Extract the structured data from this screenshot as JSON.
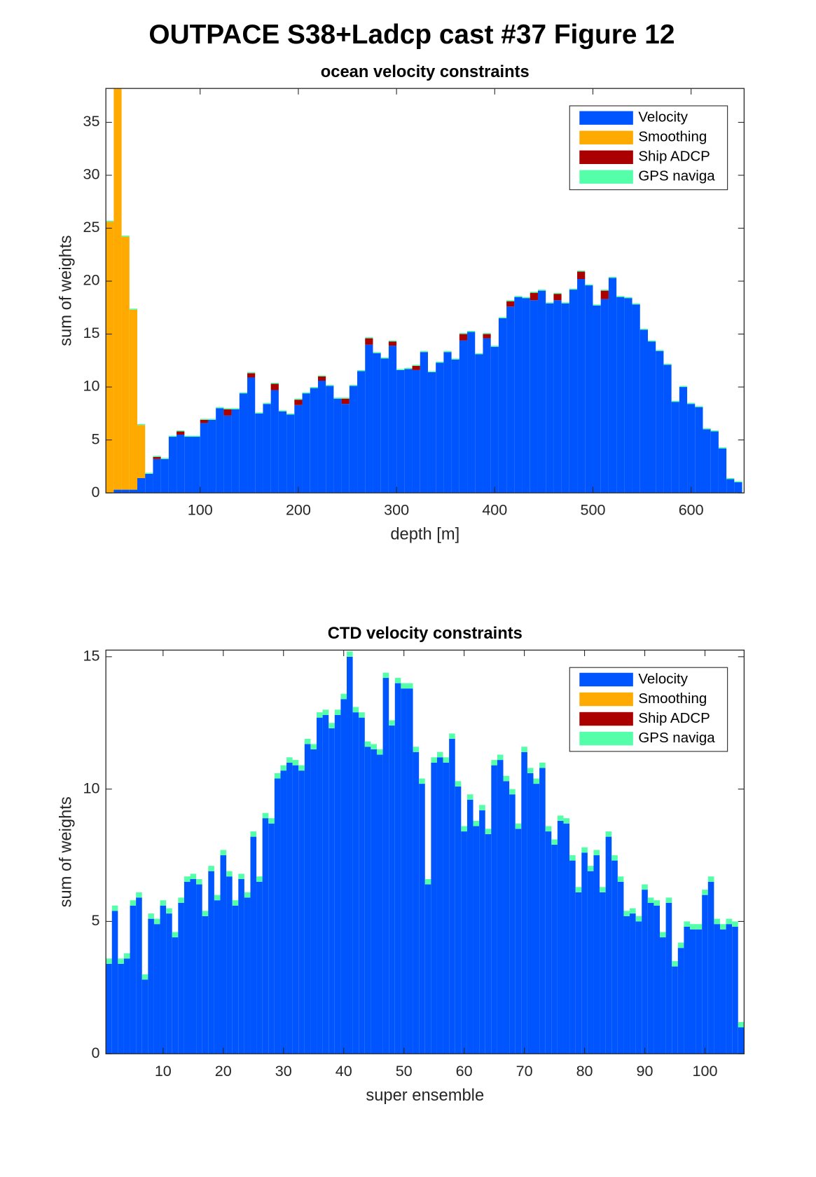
{
  "title": "OUTPACE S38+Ladcp cast #37  Figure 12",
  "chart_data": [
    {
      "type": "bar",
      "stacked": true,
      "title": "ocean velocity constraints",
      "xlabel": "depth [m]",
      "ylabel": "sum of weights",
      "xlim": [
        4,
        654
      ],
      "ylim": [
        0,
        38.2
      ],
      "xticks": [
        100,
        200,
        300,
        400,
        500,
        600
      ],
      "yticks": [
        0,
        5,
        10,
        15,
        20,
        25,
        30,
        35
      ],
      "legend": "northeast",
      "x": [
        8,
        16,
        24,
        32,
        40,
        48,
        56,
        64,
        72,
        80,
        88,
        96,
        104,
        112,
        120,
        128,
        136,
        144,
        152,
        160,
        168,
        176,
        184,
        192,
        200,
        208,
        216,
        224,
        232,
        240,
        248,
        256,
        264,
        272,
        280,
        288,
        296,
        304,
        312,
        320,
        328,
        336,
        344,
        352,
        360,
        368,
        376,
        384,
        392,
        400,
        408,
        416,
        424,
        432,
        440,
        448,
        456,
        464,
        472,
        480,
        488,
        496,
        504,
        512,
        520,
        528,
        536,
        544,
        552,
        560,
        568,
        576,
        584,
        592,
        600,
        608,
        616,
        624,
        632,
        640,
        648
      ],
      "series": [
        {
          "name": "Velocity",
          "color": "#0055ff",
          "values": [
            0,
            0.3,
            0.3,
            0.3,
            1.4,
            1.8,
            3.2,
            3.2,
            5.3,
            5.5,
            5.3,
            5.3,
            6.6,
            6.9,
            8.0,
            7.3,
            7.9,
            9.4,
            10.9,
            7.5,
            8.4,
            9.7,
            7.7,
            7.4,
            8.3,
            9.4,
            9.9,
            10.6,
            10.1,
            8.9,
            8.4,
            10.1,
            11.5,
            14.0,
            13.2,
            12.7,
            13.9,
            11.6,
            11.7,
            11.6,
            13.3,
            11.4,
            12.3,
            13.3,
            12.6,
            14.4,
            15.2,
            13.1,
            14.6,
            13.8,
            16.5,
            17.6,
            18.5,
            18.4,
            18.2,
            19.1,
            17.9,
            18.2,
            17.9,
            19.2,
            20.2,
            19.6,
            17.7,
            18.3,
            20.3,
            18.5,
            18.4,
            17.8,
            15.4,
            14.3,
            13.4,
            12.1,
            8.6,
            10.0,
            8.4,
            8.1,
            6.0,
            5.8,
            4.2,
            1.3,
            1.0
          ]
        },
        {
          "name": "Smoothing",
          "color": "#ffaa00",
          "values": [
            25.6,
            37.9,
            23.9,
            17.0,
            5.0,
            0,
            0,
            0,
            0,
            0,
            0,
            0,
            0,
            0,
            0,
            0,
            0,
            0,
            0,
            0,
            0,
            0,
            0,
            0,
            0,
            0,
            0,
            0,
            0,
            0,
            0,
            0,
            0,
            0,
            0,
            0,
            0,
            0,
            0,
            0,
            0,
            0,
            0,
            0,
            0,
            0,
            0,
            0,
            0,
            0,
            0,
            0,
            0,
            0,
            0,
            0,
            0,
            0,
            0,
            0,
            0,
            0,
            0,
            0,
            0,
            0,
            0,
            0,
            0,
            0,
            0,
            0,
            0,
            0,
            0,
            0,
            0,
            0,
            0,
            0,
            0
          ]
        },
        {
          "name": "Ship ADCP",
          "color": "#aa0000",
          "values": [
            0,
            0,
            0,
            0,
            0,
            0,
            0.2,
            0,
            0,
            0.3,
            0,
            0,
            0.3,
            0,
            0,
            0.6,
            0,
            0,
            0.4,
            0,
            0,
            0.6,
            0,
            0,
            0.5,
            0,
            0,
            0.4,
            0,
            0,
            0.5,
            0,
            0,
            0.6,
            0,
            0,
            0.4,
            0,
            0,
            0.4,
            0,
            0,
            0,
            0,
            0,
            0.6,
            0,
            0,
            0.4,
            0,
            0,
            0.5,
            0,
            0,
            0.7,
            0,
            0,
            0.6,
            0,
            0,
            0.7,
            0,
            0,
            0.8,
            0,
            0,
            0,
            0,
            0,
            0,
            0,
            0,
            0,
            0,
            0,
            0,
            0,
            0,
            0,
            0,
            0
          ]
        },
        {
          "name": "GPS naviga",
          "color": "#55ffaa",
          "values": [
            0.1,
            0.1,
            0.1,
            0.1,
            0.1,
            0.1,
            0.1,
            0.1,
            0.1,
            0.1,
            0.1,
            0.1,
            0.1,
            0.1,
            0.1,
            0.1,
            0.1,
            0.1,
            0.1,
            0.1,
            0.1,
            0.1,
            0.1,
            0.1,
            0.1,
            0.1,
            0.1,
            0.1,
            0.1,
            0.1,
            0.1,
            0.1,
            0.1,
            0.1,
            0.1,
            0.1,
            0.1,
            0.1,
            0.1,
            0.1,
            0.1,
            0.1,
            0.1,
            0.1,
            0.1,
            0.1,
            0.1,
            0.1,
            0.1,
            0.1,
            0.1,
            0.1,
            0.1,
            0.1,
            0.1,
            0.1,
            0.1,
            0.1,
            0.1,
            0.1,
            0.1,
            0.1,
            0.1,
            0.1,
            0.1,
            0.1,
            0.1,
            0.1,
            0.1,
            0.1,
            0.1,
            0.1,
            0.1,
            0.1,
            0.1,
            0.1,
            0.1,
            0.1,
            0.1,
            0.1,
            0.1
          ]
        }
      ]
    },
    {
      "type": "bar",
      "stacked": true,
      "title": "CTD velocity constraints",
      "xlabel": "super ensemble",
      "ylabel": "sum of weights",
      "xlim": [
        0.5,
        106.5
      ],
      "ylim": [
        0,
        15.25
      ],
      "xticks": [
        10,
        20,
        30,
        40,
        50,
        60,
        70,
        80,
        90,
        100
      ],
      "yticks": [
        0,
        5,
        10,
        15
      ],
      "legend": "northeast",
      "x": [
        1,
        2,
        3,
        4,
        5,
        6,
        7,
        8,
        9,
        10,
        11,
        12,
        13,
        14,
        15,
        16,
        17,
        18,
        19,
        20,
        21,
        22,
        23,
        24,
        25,
        26,
        27,
        28,
        29,
        30,
        31,
        32,
        33,
        34,
        35,
        36,
        37,
        38,
        39,
        40,
        41,
        42,
        43,
        44,
        45,
        46,
        47,
        48,
        49,
        50,
        51,
        52,
        53,
        54,
        55,
        56,
        57,
        58,
        59,
        60,
        61,
        62,
        63,
        64,
        65,
        66,
        67,
        68,
        69,
        70,
        71,
        72,
        73,
        74,
        75,
        76,
        77,
        78,
        79,
        80,
        81,
        82,
        83,
        84,
        85,
        86,
        87,
        88,
        89,
        90,
        91,
        92,
        93,
        94,
        95,
        96,
        97,
        98,
        99,
        100,
        101,
        102,
        103,
        104,
        105,
        106
      ],
      "series": [
        {
          "name": "Velocity",
          "color": "#0055ff",
          "values": [
            3.4,
            5.4,
            3.4,
            3.6,
            5.6,
            5.9,
            2.8,
            5.1,
            4.9,
            5.6,
            5.3,
            4.4,
            5.7,
            6.5,
            6.6,
            6.4,
            5.2,
            6.9,
            5.8,
            7.5,
            6.7,
            5.6,
            6.6,
            5.9,
            8.2,
            6.5,
            8.9,
            8.7,
            10.4,
            10.7,
            11.0,
            10.9,
            10.7,
            11.7,
            11.5,
            12.7,
            12.8,
            12.3,
            12.8,
            13.4,
            15.0,
            12.9,
            12.7,
            11.6,
            11.5,
            11.3,
            14.2,
            12.4,
            14.0,
            13.8,
            13.8,
            11.4,
            10.2,
            6.4,
            11.0,
            11.2,
            11.0,
            11.9,
            10.1,
            8.4,
            9.6,
            8.6,
            9.2,
            8.3,
            10.9,
            11.1,
            10.3,
            9.8,
            8.5,
            11.4,
            10.6,
            10.2,
            10.8,
            8.4,
            7.9,
            8.8,
            8.7,
            7.3,
            6.1,
            7.6,
            6.9,
            7.5,
            6.1,
            8.2,
            7.3,
            6.5,
            5.2,
            5.3,
            5.0,
            6.2,
            5.7,
            5.6,
            4.4,
            5.7,
            3.3,
            4.0,
            4.8,
            4.7,
            4.7,
            6.0,
            6.5,
            4.9,
            4.7,
            4.9,
            4.8,
            1.0
          ]
        },
        {
          "name": "Smoothing",
          "color": "#ffaa00",
          "values": [
            0,
            0,
            0,
            0,
            0,
            0,
            0,
            0,
            0,
            0,
            0,
            0,
            0,
            0,
            0,
            0,
            0,
            0,
            0,
            0,
            0,
            0,
            0,
            0,
            0,
            0,
            0,
            0,
            0,
            0,
            0,
            0,
            0,
            0,
            0,
            0,
            0,
            0,
            0,
            0,
            0,
            0,
            0,
            0,
            0,
            0,
            0,
            0,
            0,
            0,
            0,
            0,
            0,
            0,
            0,
            0,
            0,
            0,
            0,
            0,
            0,
            0,
            0,
            0,
            0,
            0,
            0,
            0,
            0,
            0,
            0,
            0,
            0,
            0,
            0,
            0,
            0,
            0,
            0,
            0,
            0,
            0,
            0,
            0,
            0,
            0,
            0,
            0,
            0,
            0,
            0,
            0,
            0,
            0,
            0,
            0,
            0,
            0,
            0,
            0,
            0,
            0,
            0,
            0,
            0,
            0
          ]
        },
        {
          "name": "Ship ADCP",
          "color": "#aa0000",
          "values": [
            0,
            0,
            0,
            0,
            0,
            0,
            0,
            0,
            0,
            0,
            0,
            0,
            0,
            0,
            0,
            0,
            0,
            0,
            0,
            0,
            0,
            0,
            0,
            0,
            0,
            0,
            0,
            0,
            0,
            0,
            0,
            0,
            0,
            0,
            0,
            0,
            0,
            0,
            0,
            0,
            0,
            0,
            0,
            0,
            0,
            0,
            0,
            0,
            0,
            0,
            0,
            0,
            0,
            0,
            0,
            0,
            0,
            0,
            0,
            0,
            0,
            0,
            0,
            0,
            0,
            0,
            0,
            0,
            0,
            0,
            0,
            0,
            0,
            0,
            0,
            0,
            0,
            0,
            0,
            0,
            0,
            0,
            0,
            0,
            0,
            0,
            0,
            0,
            0,
            0,
            0,
            0,
            0,
            0,
            0,
            0,
            0,
            0,
            0,
            0,
            0,
            0,
            0,
            0,
            0,
            0
          ]
        },
        {
          "name": "GPS naviga",
          "color": "#55ffaa",
          "values": [
            0.2,
            0.2,
            0.2,
            0.2,
            0.2,
            0.2,
            0.2,
            0.2,
            0.2,
            0.2,
            0.2,
            0.2,
            0.2,
            0.2,
            0.2,
            0.2,
            0.2,
            0.2,
            0.2,
            0.2,
            0.2,
            0.2,
            0.2,
            0.2,
            0.2,
            0.2,
            0.2,
            0.2,
            0.2,
            0.2,
            0.2,
            0.2,
            0.2,
            0.2,
            0.2,
            0.2,
            0.2,
            0.2,
            0.2,
            0.2,
            0.2,
            0.2,
            0.2,
            0.2,
            0.2,
            0.2,
            0.2,
            0.2,
            0.2,
            0.2,
            0.2,
            0.2,
            0.2,
            0.2,
            0.2,
            0.2,
            0.2,
            0.2,
            0.2,
            0.2,
            0.2,
            0.2,
            0.2,
            0.2,
            0.2,
            0.2,
            0.2,
            0.2,
            0.2,
            0.2,
            0.2,
            0.2,
            0.2,
            0.2,
            0.2,
            0.2,
            0.2,
            0.2,
            0.2,
            0.2,
            0.2,
            0.2,
            0.2,
            0.2,
            0.2,
            0.2,
            0.2,
            0.2,
            0.2,
            0.2,
            0.2,
            0.2,
            0.2,
            0.2,
            0.2,
            0.2,
            0.2,
            0.2,
            0.2,
            0.2,
            0.2,
            0.2,
            0.2,
            0.2,
            0.2,
            0.2
          ]
        }
      ]
    }
  ]
}
